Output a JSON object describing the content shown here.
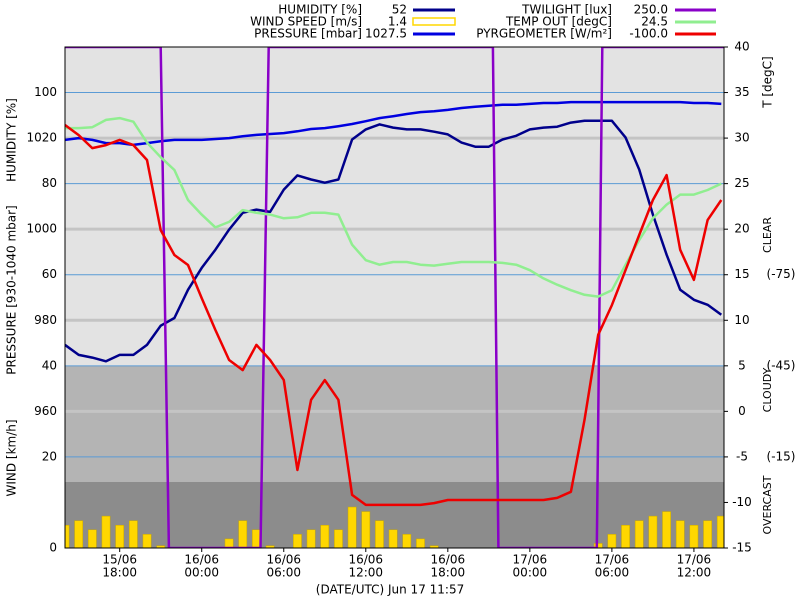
{
  "chart_data": {
    "type": "line",
    "x_label": "(DATE/UTC) Jun 17 11:57",
    "x": [
      14,
      15,
      16,
      17,
      18,
      19,
      20,
      21,
      22,
      23,
      24,
      25,
      26,
      27,
      28,
      29,
      30,
      31,
      32,
      33,
      34,
      35,
      36,
      37,
      38,
      39,
      40,
      41,
      42,
      43,
      44,
      45,
      46,
      47,
      48,
      49,
      50,
      51,
      52,
      53,
      54,
      55,
      56,
      57,
      58,
      59,
      60,
      61,
      62
    ],
    "xlim": [
      14,
      62.2
    ],
    "xticks": [
      {
        "value": 18,
        "label": [
          "15/06",
          "18:00"
        ]
      },
      {
        "value": 24,
        "label": [
          "16/06",
          "00:00"
        ]
      },
      {
        "value": 30,
        "label": [
          "16/06",
          "06:00"
        ]
      },
      {
        "value": 36,
        "label": [
          "16/06",
          "12:00"
        ]
      },
      {
        "value": 42,
        "label": [
          "16/06",
          "18:00"
        ]
      },
      {
        "value": 48,
        "label": [
          "17/06",
          "00:00"
        ]
      },
      {
        "value": 54,
        "label": [
          "17/06",
          "06:00"
        ]
      },
      {
        "value": 60,
        "label": [
          "17/06",
          "12:00"
        ]
      }
    ],
    "axes": {
      "humidity": {
        "label": "HUMIDITY [%]",
        "side": "left",
        "ylim": [
          0,
          110
        ],
        "yticks": [
          100,
          80,
          60,
          40
        ],
        "grid": "#5b9bd5"
      },
      "pressure": {
        "label": "PRESSURE [930-1040 mbar]",
        "side": "left",
        "ylim": [
          930,
          1040
        ],
        "yticks": [
          1020,
          1000,
          980,
          960
        ],
        "grid": "#c4c4c4"
      },
      "wind": {
        "label": "WIND [km/h]",
        "side": "left",
        "ylim": [
          0,
          110
        ],
        "yticks": [
          20,
          0
        ],
        "grid": "#5b9bd5"
      },
      "temp": {
        "label": "T [degC]",
        "side": "right",
        "ylim": [
          -15,
          40
        ],
        "yticks": [
          40,
          35,
          30,
          25,
          20,
          15,
          10,
          5,
          0,
          -5,
          -10,
          -15
        ]
      },
      "pyrgeometer": {
        "side": "right2",
        "ylim": [
          15,
          -150
        ],
        "yticks": [
          {
            "value": -75,
            "label": "(-75)"
          },
          {
            "value": -45,
            "label": "(-45)"
          },
          {
            "value": -15,
            "label": "(-15)"
          }
        ]
      },
      "twilight": {
        "ylim": [
          0,
          250
        ]
      }
    },
    "sky_labels": [
      "CLEAR",
      "CLOUDY",
      "OVERCAST"
    ],
    "series": [
      {
        "name": "HUMIDITY [%]",
        "legend_value": "52",
        "color": "#00008b",
        "axis": "humidity",
        "style": "line",
        "values": [
          44.6,
          42.4,
          41.8,
          41,
          42.4,
          42.4,
          44.6,
          48.8,
          50.5,
          56.7,
          61.5,
          65.5,
          69.9,
          73.6,
          74.3,
          73.8,
          78.7,
          81.8,
          80.9,
          80.2,
          80.9,
          89.7,
          91.9,
          93,
          92.3,
          91.9,
          91.9,
          91.4,
          90.8,
          89,
          88.1,
          88.1,
          89.7,
          90.5,
          91.9,
          92.3,
          92.5,
          93.4,
          93.8,
          93.8,
          93.8,
          90.1,
          83.1,
          73.2,
          64.4,
          56.7,
          54.5,
          53.4,
          51.2
        ]
      },
      {
        "name": "WIND SPEED [m/s]",
        "legend_value": "1.4",
        "color": "#ffd700",
        "axis": "wind",
        "style": "bar",
        "values": [
          5,
          6,
          4,
          7,
          5,
          6,
          3,
          0.5,
          0,
          0,
          0,
          0,
          2,
          6,
          4,
          0.5,
          0,
          3,
          4,
          5,
          4,
          9,
          8,
          6,
          4,
          3,
          2,
          0.5,
          0,
          0,
          0,
          0,
          0,
          0,
          0,
          0,
          0,
          0,
          0,
          1,
          3,
          5,
          6,
          7,
          8,
          6,
          5,
          6,
          7
        ]
      },
      {
        "name": "PRESSURE [mbar]",
        "legend_value": "1027.5",
        "color": "#0000e0",
        "axis": "pressure",
        "style": "line",
        "values": [
          1019.6,
          1020,
          1019.6,
          1018.9,
          1018.9,
          1018.5,
          1018.9,
          1019.3,
          1019.6,
          1019.6,
          1019.6,
          1019.8,
          1020,
          1020.4,
          1020.7,
          1020.9,
          1021.1,
          1021.5,
          1022,
          1022.2,
          1022.6,
          1023.1,
          1023.7,
          1024.4,
          1024.8,
          1025.3,
          1025.7,
          1025.9,
          1026.2,
          1026.6,
          1026.9,
          1027.1,
          1027.3,
          1027.3,
          1027.5,
          1027.7,
          1027.7,
          1027.9,
          1027.9,
          1027.9,
          1027.9,
          1027.9,
          1027.9,
          1027.9,
          1027.9,
          1027.9,
          1027.7,
          1027.7,
          1027.5
        ]
      },
      {
        "name": "TWILIGHT [lux]",
        "legend_value": "250.0",
        "color": "#8a00c8",
        "axis": "twilight",
        "style": "line",
        "x": [
          14,
          21,
          21.6,
          28.3,
          28.9,
          45.3,
          45.7,
          52.9,
          53.3,
          62.2
        ],
        "values": [
          250,
          250,
          0,
          0,
          250,
          250,
          0,
          0,
          250,
          250
        ]
      },
      {
        "name": "TEMP OUT [degC]",
        "legend_value": "24.5",
        "color": "#90ee90",
        "axis": "temp",
        "style": "line",
        "values": [
          31.1,
          31.1,
          31.2,
          32,
          32.2,
          31.8,
          29.5,
          27.9,
          26.5,
          23.2,
          21.6,
          20.2,
          20.8,
          22.1,
          21.8,
          21.6,
          21.2,
          21.3,
          21.8,
          21.8,
          21.6,
          18.3,
          16.6,
          16.1,
          16.4,
          16.4,
          16.1,
          16,
          16.2,
          16.4,
          16.4,
          16.4,
          16.3,
          16.1,
          15.5,
          14.6,
          13.9,
          13.3,
          12.8,
          12.6,
          13.3,
          16.1,
          18.8,
          21.2,
          22.7,
          23.8,
          23.8,
          24.3,
          25
        ]
      },
      {
        "name": "PYRGEOMETER [W/m²]",
        "legend_value": "-100.0",
        "color": "#ee0000",
        "axis": "pyrgeometer",
        "style": "line",
        "values": [
          -124.3,
          -121,
          -116.7,
          -117.7,
          -119.4,
          -117.7,
          -112.8,
          -89.7,
          -81.5,
          -78.2,
          -67.3,
          -56.8,
          -46.9,
          -43.6,
          -51.9,
          -46.9,
          -40.3,
          -10.7,
          -33.8,
          -40.3,
          -33.8,
          -2.5,
          0.8,
          0.8,
          0.8,
          0.8,
          0.8,
          0.2,
          -0.8,
          -0.8,
          -0.8,
          -0.8,
          -0.8,
          -0.8,
          -0.8,
          -0.8,
          -1.5,
          -3.5,
          -27.2,
          -55.2,
          -65,
          -76.6,
          -88.1,
          -99.6,
          -107.8,
          -83.2,
          -73.3,
          -93,
          -99.6
        ]
      }
    ]
  }
}
